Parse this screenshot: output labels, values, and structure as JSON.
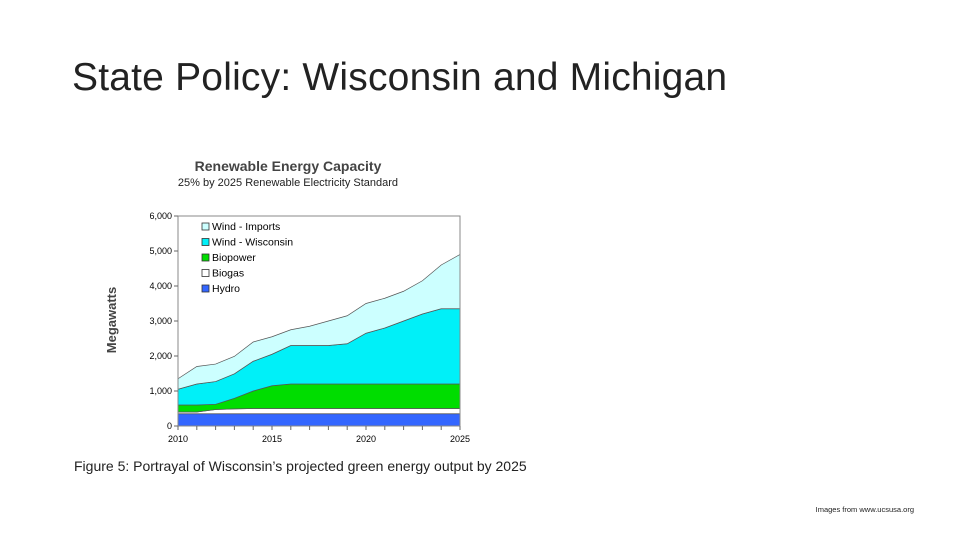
{
  "slide": {
    "title": "State Policy: Wisconsin and Michigan",
    "caption": "Figure 5: Portrayal of Wisconsin’s projected green energy output by 2025",
    "credit": "Images from www.ucsusa.org"
  },
  "chart_data": {
    "type": "area",
    "stacked": true,
    "title": "Renewable Energy Capacity",
    "subtitle": "25% by 2025 Renewable Electricity Standard",
    "xlabel": "",
    "ylabel": "Megawatts",
    "xlim": [
      2010,
      2025
    ],
    "ylim": [
      0,
      6000
    ],
    "x_ticks": [
      "2010",
      "2015",
      "2020",
      "2025"
    ],
    "y_ticks": [
      "0",
      "1,000",
      "2,000",
      "3,000",
      "4,000",
      "5,000",
      "6,000"
    ],
    "y_tick_values": [
      0,
      1000,
      2000,
      3000,
      4000,
      5000,
      6000
    ],
    "legend_position": "top-left",
    "x": [
      2010,
      2011,
      2012,
      2013,
      2014,
      2015,
      2016,
      2017,
      2018,
      2019,
      2020,
      2021,
      2022,
      2023,
      2024,
      2025
    ],
    "series": [
      {
        "name": "Hydro",
        "color": "#3366ff",
        "values": [
          350,
          350,
          350,
          350,
          350,
          350,
          350,
          350,
          350,
          350,
          350,
          350,
          350,
          350,
          350,
          350
        ]
      },
      {
        "name": "Biogas",
        "color": "#ffffff",
        "values": [
          50,
          50,
          120,
          140,
          150,
          150,
          150,
          150,
          150,
          150,
          150,
          150,
          150,
          150,
          150,
          150
        ]
      },
      {
        "name": "Biopower",
        "color": "#00dd00",
        "values": [
          200,
          200,
          150,
          300,
          500,
          650,
          700,
          700,
          700,
          700,
          700,
          700,
          700,
          700,
          700,
          700
        ]
      },
      {
        "name": "Wind - Wisconsin",
        "color": "#00f0f8",
        "values": [
          450,
          600,
          650,
          700,
          850,
          900,
          1100,
          1100,
          1100,
          1150,
          1450,
          1600,
          1800,
          2000,
          2150,
          2150
        ]
      },
      {
        "name": "Wind - Imports",
        "color": "#ccffff",
        "values": [
          300,
          500,
          500,
          500,
          550,
          500,
          450,
          550,
          700,
          800,
          850,
          850,
          850,
          950,
          1250,
          1550
        ]
      }
    ],
    "legend_order": [
      "Wind - Imports",
      "Wind - Wisconsin",
      "Biopower",
      "Biogas",
      "Hydro"
    ]
  }
}
